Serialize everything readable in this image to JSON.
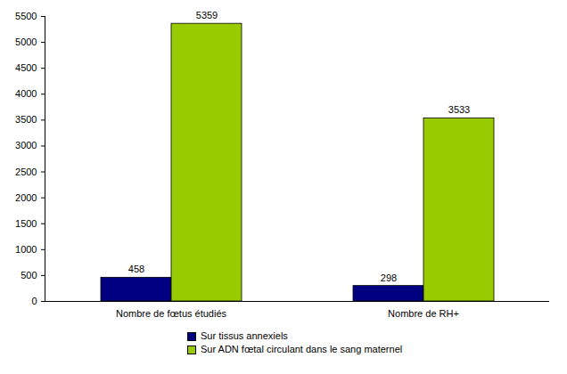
{
  "chart_data": {
    "type": "bar",
    "categories": [
      "Nombre de fœtus étudiés",
      "Nombre de RH+"
    ],
    "series": [
      {
        "name": "Sur tissus annexiels",
        "color": "#000080",
        "values": [
          458,
          298
        ]
      },
      {
        "name": "Sur ADN fœtal circulant dans le sang maternel",
        "color": "#99cc00",
        "values": [
          5359,
          3533
        ]
      }
    ],
    "ylim": [
      0,
      5500
    ],
    "yticks": [
      0,
      500,
      1000,
      1500,
      2000,
      2500,
      3000,
      3500,
      4000,
      4500,
      5000,
      5500
    ],
    "grid": false,
    "data_labels": true,
    "legend": "bottom"
  }
}
